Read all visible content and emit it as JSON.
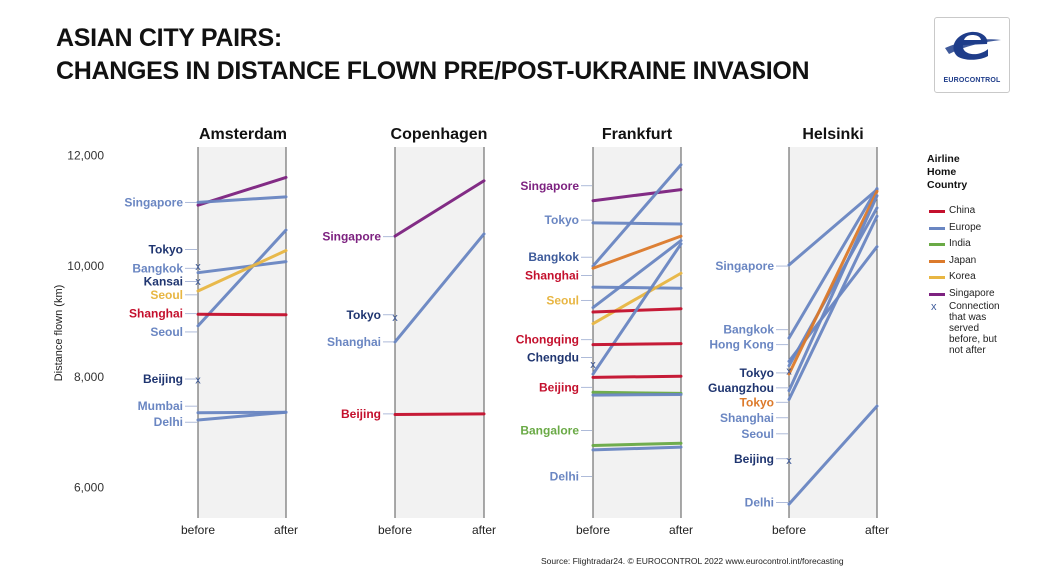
{
  "title": {
    "line1": "ASIAN CITY PAIRS:",
    "line2": "CHANGES IN DISTANCE FLOWN PRE/POST-UKRAINE INVASION"
  },
  "logo": {
    "text": "EUROCONTROL",
    "icon": "eurocontrol-logo-icon",
    "color": "#1f3d8a"
  },
  "source": "Source: Flightradar24. © EUROCONTROL 2022 www.eurocontrol.int/forecasting",
  "legend": {
    "title": "Airline\nHome\nCountry",
    "items": [
      {
        "label": "China",
        "color": "#c4102d"
      },
      {
        "label": "Europe",
        "color": "#6a86c2"
      },
      {
        "label": "India",
        "color": "#6aaa46"
      },
      {
        "label": "Japan",
        "color": "#dc7a2b"
      },
      {
        "label": "Korea",
        "color": "#e8b643"
      },
      {
        "label": "Singapore",
        "color": "#7d2280"
      }
    ],
    "marker_symbol": "x",
    "marker_label": "Connection that was served before, but not after"
  },
  "chart_data": {
    "type": "line",
    "ylabel": "Distance flown (km)",
    "yticks": [
      6000,
      8000,
      10000,
      12000
    ],
    "ytick_labels": [
      "6,000",
      "8,000",
      "10,000",
      "12,000"
    ],
    "ylim": [
      5450,
      12150
    ],
    "x": [
      "before",
      "after"
    ],
    "grid": false,
    "legend_position": "right",
    "colors": {
      "china": "#c4102d",
      "europe": "#6a86c2",
      "india": "#6aaa46",
      "japan": "#dc7a2b",
      "korea": "#e8b643",
      "singapore": "#7d2280"
    },
    "panels": [
      {
        "title": "Amsterdam",
        "series": [
          {
            "carrier": "singapore",
            "values": [
              11100,
              11600
            ]
          },
          {
            "carrier": "europe",
            "values": [
              11150,
              11250
            ]
          },
          {
            "carrier": "europe",
            "values": [
              9880,
              10080
            ]
          },
          {
            "carrier": "europe",
            "values": [
              8920,
              10650
            ]
          },
          {
            "carrier": "korea",
            "values": [
              9550,
              10280
            ]
          },
          {
            "carrier": "china",
            "values": [
              9130,
              9120
            ]
          },
          {
            "carrier": "europe",
            "values": [
              7350,
              7360
            ]
          },
          {
            "carrier": "europe",
            "values": [
              7220,
              7360
            ]
          }
        ],
        "markers": [
          {
            "carrier": "europe",
            "value": 10000
          },
          {
            "carrier": "europe",
            "value": 9730
          },
          {
            "carrier": "europe",
            "value": 7950
          }
        ],
        "labels": [
          {
            "text": "Singapore",
            "value": 11150,
            "highlight": "pore",
            "color": "#6a86c2",
            "hcolor": "#7d2280"
          },
          {
            "text": "Tokyo",
            "value": 10300,
            "color": "#1f3570"
          },
          {
            "text": "Bangkok",
            "value": 9960,
            "color": "#6a86c2"
          },
          {
            "text": "Kansai",
            "value": 9720,
            "color": "#1f3570"
          },
          {
            "text": "Seoul",
            "value": 9480,
            "color": "#e8b643"
          },
          {
            "text": "Shanghai",
            "value": 9140,
            "color": "#c4102d"
          },
          {
            "text": "Seoul",
            "value": 8810,
            "color": "#6a86c2"
          },
          {
            "text": "Beijing",
            "value": 7960,
            "color": "#1f3570"
          },
          {
            "text": "Mumbai",
            "value": 7470,
            "color": "#6a86c2"
          },
          {
            "text": "Delhi",
            "value": 7180,
            "color": "#6a86c2"
          }
        ]
      },
      {
        "title": "Copenhagen",
        "series": [
          {
            "carrier": "singapore",
            "values": [
              10540,
              11540
            ]
          },
          {
            "carrier": "europe",
            "values": [
              8630,
              10580
            ]
          },
          {
            "carrier": "china",
            "values": [
              7320,
              7330
            ]
          }
        ],
        "markers": [
          {
            "carrier": "europe",
            "value": 9080
          }
        ],
        "labels": [
          {
            "text": "Singapore",
            "value": 10530,
            "color": "#7d2280"
          },
          {
            "text": "Tokyo",
            "value": 9120,
            "color": "#1f3570"
          },
          {
            "text": "Shanghai",
            "value": 8630,
            "color": "#6a86c2"
          },
          {
            "text": "Beijing",
            "value": 7330,
            "color": "#c4102d"
          }
        ]
      },
      {
        "title": "Frankfurt",
        "series": [
          {
            "carrier": "singapore",
            "values": [
              11180,
              11380
            ]
          },
          {
            "carrier": "europe",
            "values": [
              10780,
              10760
            ]
          },
          {
            "carrier": "europe",
            "values": [
              10000,
              11830
            ]
          },
          {
            "carrier": "japan",
            "values": [
              9960,
              10540
            ]
          },
          {
            "carrier": "europe",
            "values": [
              9250,
              10460
            ]
          },
          {
            "carrier": "europe",
            "values": [
              9620,
              9600
            ]
          },
          {
            "carrier": "korea",
            "values": [
              8960,
              9870
            ]
          },
          {
            "carrier": "china",
            "values": [
              9170,
              9230
            ]
          },
          {
            "carrier": "europe",
            "values": [
              8050,
              10400
            ]
          },
          {
            "carrier": "china",
            "values": [
              8580,
              8600
            ]
          },
          {
            "carrier": "china",
            "values": [
              7990,
              8010
            ]
          },
          {
            "carrier": "india",
            "values": [
              7720,
              7700
            ]
          },
          {
            "carrier": "europe",
            "values": [
              7670,
              7680
            ]
          },
          {
            "carrier": "india",
            "values": [
              6760,
              6800
            ]
          },
          {
            "carrier": "europe",
            "values": [
              6680,
              6730
            ]
          }
        ],
        "markers": [
          {
            "carrier": "europe",
            "value": 8230
          }
        ],
        "labels": [
          {
            "text": "Singapore",
            "value": 11450,
            "color": "#7d2280",
            "prefix": "Singa",
            "pcolor": "#7d2280",
            "rest_color": "#6a86c2"
          },
          {
            "text": "Tokyo",
            "value": 10830,
            "color": "#6a86c2",
            "accent": "dc7a2b"
          },
          {
            "text": "Bangkok",
            "value": 10160,
            "color": "#3d5a9a"
          },
          {
            "text": "Shanghai",
            "value": 9830,
            "color": "#c4102d"
          },
          {
            "text": "Seoul",
            "value": 9380,
            "color": "#e8b643"
          },
          {
            "text": "Chongqing",
            "value": 8670,
            "color": "#c4102d"
          },
          {
            "text": "Chengdu",
            "value": 8350,
            "color": "#1f3570"
          },
          {
            "text": "Beijing",
            "value": 7810,
            "color": "#c4102d"
          },
          {
            "text": "Bangalore",
            "value": 7030,
            "color": "#6aaa46"
          },
          {
            "text": "Delhi",
            "value": 6200,
            "color": "#6a86c2"
          }
        ]
      },
      {
        "title": "Helsinki",
        "series": [
          {
            "carrier": "europe",
            "values": [
              10020,
              11380
            ]
          },
          {
            "carrier": "europe",
            "values": [
              8700,
              11400
            ]
          },
          {
            "carrier": "europe",
            "values": [
              8280,
              10350
            ]
          },
          {
            "carrier": "europe",
            "values": [
              8200,
              11050
            ]
          },
          {
            "carrier": "japan",
            "values": [
              8050,
              11350
            ]
          },
          {
            "carrier": "europe",
            "values": [
              7750,
              11270
            ]
          },
          {
            "carrier": "europe",
            "values": [
              7590,
              10900
            ]
          },
          {
            "carrier": "europe",
            "values": [
              5700,
              7470
            ]
          }
        ],
        "markers": [
          {
            "carrier": "europe",
            "value": 8110
          },
          {
            "carrier": "europe",
            "value": 6500
          }
        ],
        "labels": [
          {
            "text": "Singapore",
            "value": 10000,
            "color": "#6a86c2"
          },
          {
            "text": "Bangkok",
            "value": 8850,
            "color": "#6a86c2"
          },
          {
            "text": "Hong Kong",
            "value": 8580,
            "color": "#6a86c2"
          },
          {
            "text": "Tokyo",
            "value": 8070,
            "color": "#1f3570"
          },
          {
            "text": "Guangzhou",
            "value": 7800,
            "color": "#1f3570"
          },
          {
            "text": "Tokyo",
            "value": 7540,
            "color": "#dc7a2b"
          },
          {
            "text": "Shanghai",
            "value": 7260,
            "color": "#6a86c2"
          },
          {
            "text": "Seoul",
            "value": 6970,
            "color": "#6a86c2"
          },
          {
            "text": "Beijing",
            "value": 6520,
            "color": "#1f3570"
          },
          {
            "text": "Delhi",
            "value": 5730,
            "color": "#6a86c2"
          }
        ]
      }
    ]
  }
}
